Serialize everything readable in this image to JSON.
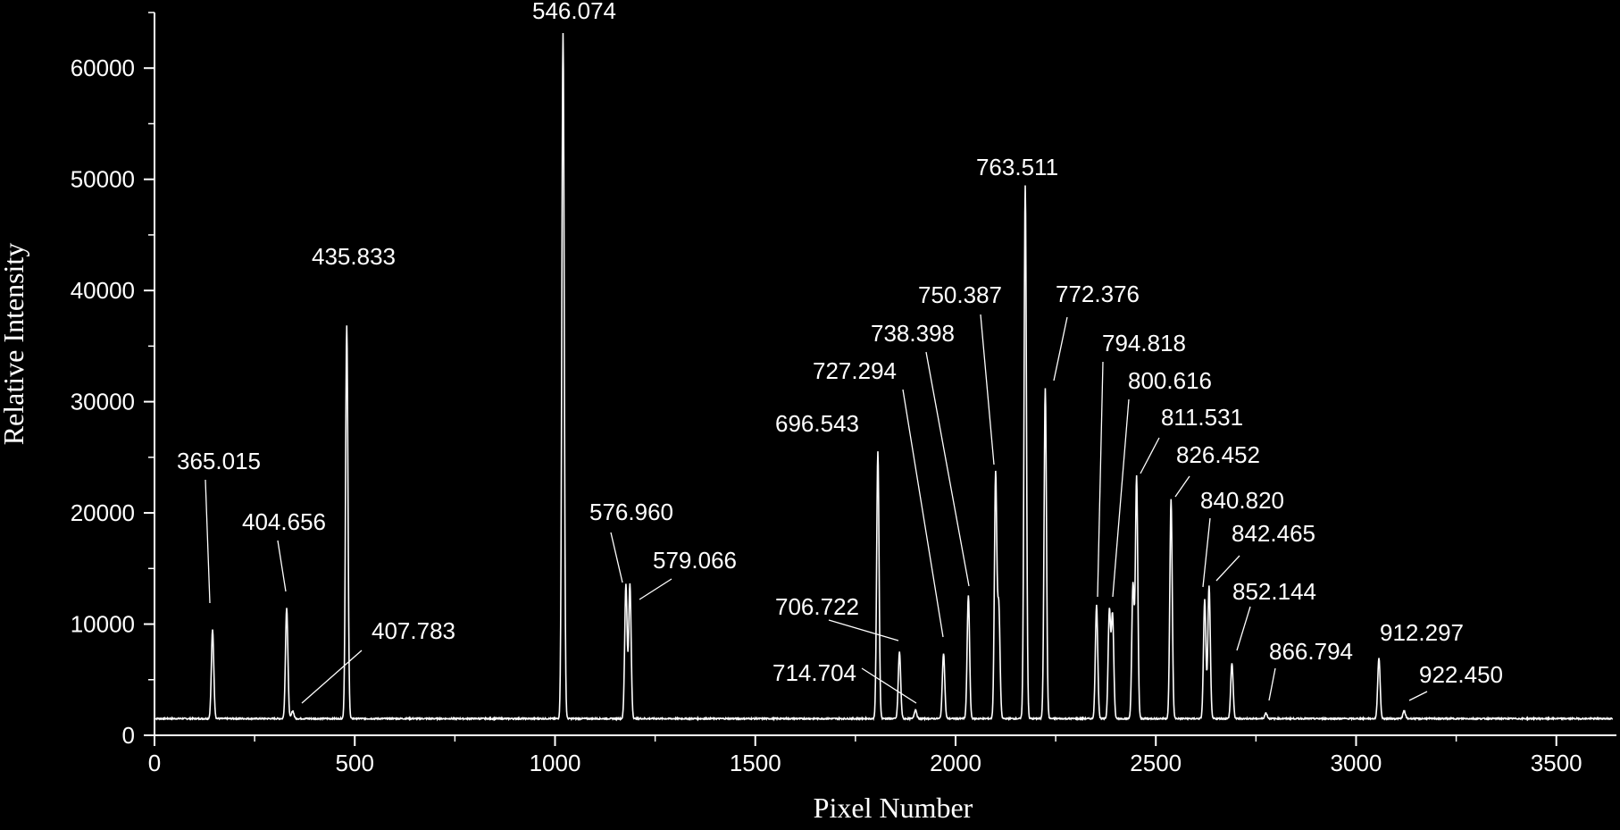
{
  "colors": {
    "background": "#000000",
    "foreground": "#ffffff"
  },
  "chart_data": {
    "type": "line",
    "title": "",
    "xlabel": "Pixel Number",
    "ylabel": "Relative Intensity",
    "xlim": [
      0,
      3650
    ],
    "ylim": [
      0,
      65000
    ],
    "x_ticks": [
      0,
      500,
      1000,
      1500,
      2000,
      2500,
      3000,
      3500
    ],
    "x_minor_step": 250,
    "y_ticks": [
      0,
      10000,
      20000,
      30000,
      40000,
      50000,
      60000
    ],
    "y_minor_step": 5000,
    "grid": false,
    "legend": "none",
    "baseline": 1500,
    "peaks": [
      {
        "x": 145,
        "y": 9500,
        "label": "365.015"
      },
      {
        "x": 330,
        "y": 11500,
        "label": "404.656"
      },
      {
        "x": 345,
        "y": 2200,
        "label": "407.783"
      },
      {
        "x": 480,
        "y": 36800,
        "label": "435.833"
      },
      {
        "x": 1020,
        "y": 63200,
        "label": "546.074"
      },
      {
        "x": 1177,
        "y": 13600,
        "label": "576.960"
      },
      {
        "x": 1187,
        "y": 13600,
        "label": "579.066"
      },
      {
        "x": 1806,
        "y": 25500,
        "label": "696.543"
      },
      {
        "x": 1860,
        "y": 7500,
        "label": "706.722"
      },
      {
        "x": 1900,
        "y": 2300,
        "label": "714.704"
      },
      {
        "x": 1970,
        "y": 7400,
        "label": "727.294"
      },
      {
        "x": 2032,
        "y": 12600,
        "label": "738.398"
      },
      {
        "x": 2100,
        "y": 23500,
        "label": "750.387"
      },
      {
        "x": 2108,
        "y": 11500,
        "label": ""
      },
      {
        "x": 2174,
        "y": 49500,
        "label": "763.511"
      },
      {
        "x": 2224,
        "y": 31200,
        "label": "772.376"
      },
      {
        "x": 2352,
        "y": 11700,
        "label": "794.818"
      },
      {
        "x": 2384,
        "y": 11200,
        "label": "800.616"
      },
      {
        "x": 2392,
        "y": 10800,
        "label": ""
      },
      {
        "x": 2443,
        "y": 13500,
        "label": ""
      },
      {
        "x": 2452,
        "y": 23200,
        "label": "811.531"
      },
      {
        "x": 2538,
        "y": 21200,
        "label": "826.452"
      },
      {
        "x": 2622,
        "y": 12200,
        "label": "840.820"
      },
      {
        "x": 2633,
        "y": 13500,
        "label": "842.465"
      },
      {
        "x": 2690,
        "y": 6500,
        "label": "852.144"
      },
      {
        "x": 2775,
        "y": 2000,
        "label": "866.794"
      },
      {
        "x": 3057,
        "y": 7000,
        "label": "912.297"
      },
      {
        "x": 3120,
        "y": 2200,
        "label": "922.450"
      }
    ]
  }
}
